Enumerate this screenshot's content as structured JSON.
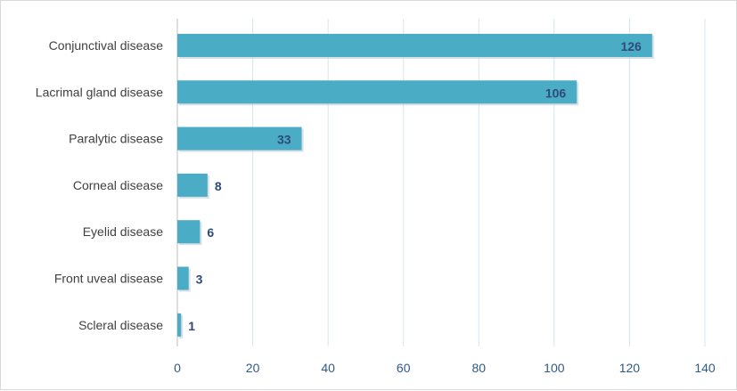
{
  "chart_data": {
    "type": "bar",
    "orientation": "horizontal",
    "categories": [
      "Conjunctival disease",
      "Lacrimal gland disease",
      "Paralytic disease",
      "Corneal disease",
      "Eyelid disease",
      "Front uveal disease",
      "Scleral disease"
    ],
    "values": [
      126,
      106,
      33,
      8,
      6,
      3,
      1
    ],
    "value_labels": [
      "126",
      "106",
      "33",
      "8",
      "6",
      "3",
      "1"
    ],
    "xlim": [
      0,
      140
    ],
    "xticks": [
      0,
      20,
      40,
      60,
      80,
      100,
      120,
      140
    ],
    "xtick_labels": [
      "0",
      "20",
      "40",
      "60",
      "80",
      "100",
      "120",
      "140"
    ],
    "title": "",
    "xlabel": "",
    "ylabel": "",
    "grid": "vertical",
    "legend": "none",
    "bar_color": "#4bacc6",
    "grid_color": "#d9e4ef",
    "tick_label_color": "#2e5a8a",
    "value_label_color": "#2e4a7a"
  }
}
